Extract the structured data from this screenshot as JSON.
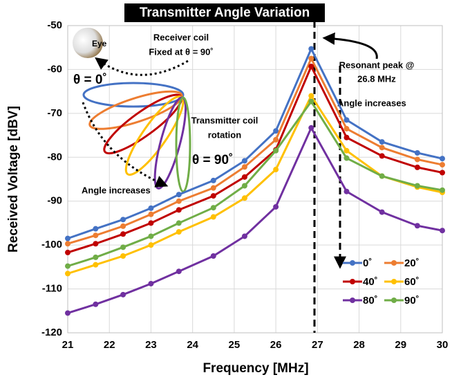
{
  "chart_data": {
    "type": "line",
    "title": "Transmitter Angle Variation",
    "x_label": "Frequency [MHz]",
    "y_label": "Received Voltage [dBV]",
    "x": [
      21,
      21.67,
      22.33,
      23,
      23.67,
      24.5,
      25.25,
      26,
      26.85,
      27.7,
      28.55,
      29.4,
      30
    ],
    "series": [
      {
        "name": "0˚",
        "color": "#4472c4",
        "values": [
          -98.5,
          -96.3,
          -94.2,
          -91.6,
          -88.5,
          -85.3,
          -80.8,
          -74.0,
          -55.3,
          -71.5,
          -76.5,
          -79.0,
          -80.3
        ]
      },
      {
        "name": "20˚",
        "color": "#ed7d31",
        "values": [
          -99.7,
          -97.8,
          -95.7,
          -93.0,
          -90.0,
          -87.0,
          -82.2,
          -76.0,
          -57.5,
          -73.5,
          -77.8,
          -80.5,
          -81.7
        ]
      },
      {
        "name": "40˚",
        "color": "#c00000",
        "values": [
          -101.7,
          -99.7,
          -97.5,
          -95.0,
          -92.0,
          -88.8,
          -84.5,
          -78.3,
          -59.3,
          -75.5,
          -79.7,
          -82.3,
          -83.5
        ]
      },
      {
        "name": "60˚",
        "color": "#ffc000",
        "values": [
          -106.5,
          -104.5,
          -102.5,
          -100.0,
          -97.0,
          -93.6,
          -89.3,
          -82.8,
          -66.0,
          -78.5,
          -84.3,
          -86.8,
          -88.0
        ]
      },
      {
        "name": "80˚",
        "color": "#7030a0",
        "values": [
          -115.5,
          -113.5,
          -111.3,
          -108.8,
          -106.0,
          -102.5,
          -98.0,
          -91.3,
          -73.3,
          -87.8,
          -92.5,
          -95.6,
          -96.7
        ]
      },
      {
        "name": "90˚",
        "color": "#70ad47",
        "values": [
          -104.8,
          -102.8,
          -100.5,
          -98.0,
          -95.0,
          -91.5,
          -86.5,
          -78.5,
          -67.3,
          -80.2,
          -84.3,
          -86.5,
          -87.5
        ]
      }
    ],
    "xlim": [
      21,
      30
    ],
    "xticks": [
      21,
      22,
      23,
      24,
      25,
      26,
      27,
      28,
      29,
      30
    ],
    "ylim": [
      -120,
      -50
    ],
    "yticks": [
      -120,
      -110,
      -100,
      -90,
      -80,
      -70,
      -60,
      -50
    ],
    "grid": true,
    "annotations": {
      "eye": "Eye",
      "receiver_1": "Receiver coil",
      "receiver_2": "Fixed at θ = 90˚",
      "theta0": "θ = 0˚",
      "transmitter_1": "Transmitter coil",
      "transmitter_2": "rotation",
      "theta90": "θ = 90˚",
      "angle_left": "Angle increases",
      "resonant_1": "Resonant peak @",
      "resonant_2": "26.8 MHz",
      "angle_right": "Angle increases"
    }
  }
}
